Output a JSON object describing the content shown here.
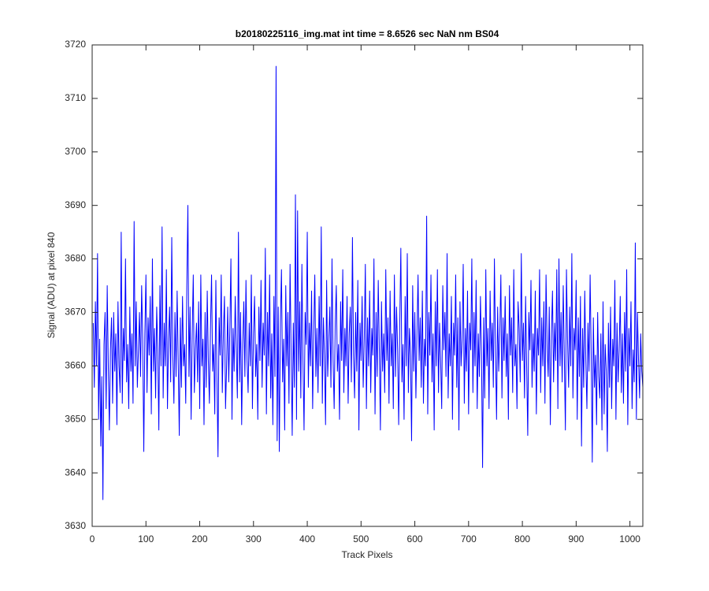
{
  "chart_data": {
    "type": "line",
    "title": "b20180225116_img.mat int time = 8.6526 sec  NaN nm BS04",
    "x_label": "Track Pixels",
    "y_label": "Signal (ADU) at pixel 840",
    "xlim": [
      0,
      1024
    ],
    "ylim": [
      3630,
      3720
    ],
    "xticks": [
      0,
      100,
      200,
      300,
      400,
      500,
      600,
      700,
      800,
      900,
      1000
    ],
    "yticks": [
      3630,
      3640,
      3650,
      3660,
      3670,
      3680,
      3690,
      3700,
      3710,
      3720
    ],
    "grid": false,
    "x": [
      2,
      4,
      6,
      8,
      10,
      12,
      14,
      16,
      18,
      20,
      22,
      24,
      26,
      28,
      30,
      32,
      34,
      36,
      38,
      40,
      42,
      44,
      46,
      48,
      50,
      52,
      54,
      56,
      58,
      60,
      62,
      64,
      66,
      68,
      70,
      72,
      74,
      76,
      78,
      80,
      82,
      84,
      86,
      88,
      90,
      92,
      94,
      96,
      98,
      100,
      102,
      104,
      106,
      108,
      110,
      112,
      114,
      116,
      118,
      120,
      122,
      124,
      126,
      128,
      130,
      132,
      134,
      136,
      138,
      140,
      142,
      144,
      146,
      148,
      150,
      152,
      154,
      156,
      158,
      160,
      162,
      164,
      166,
      168,
      170,
      172,
      174,
      176,
      178,
      180,
      182,
      184,
      186,
      188,
      190,
      192,
      194,
      196,
      198,
      200,
      202,
      204,
      206,
      208,
      210,
      212,
      214,
      216,
      218,
      220,
      222,
      224,
      226,
      228,
      230,
      232,
      234,
      236,
      238,
      240,
      242,
      244,
      246,
      248,
      250,
      252,
      254,
      256,
      258,
      260,
      262,
      264,
      266,
      268,
      270,
      272,
      274,
      276,
      278,
      280,
      282,
      284,
      286,
      288,
      290,
      292,
      294,
      296,
      298,
      300,
      302,
      304,
      306,
      308,
      310,
      312,
      314,
      316,
      318,
      320,
      322,
      324,
      326,
      328,
      330,
      332,
      334,
      336,
      338,
      340,
      342,
      344,
      346,
      348,
      350,
      352,
      354,
      356,
      358,
      360,
      362,
      364,
      366,
      368,
      370,
      372,
      374,
      376,
      378,
      380,
      382,
      384,
      386,
      388,
      390,
      392,
      394,
      396,
      398,
      400,
      402,
      404,
      406,
      408,
      410,
      412,
      414,
      416,
      418,
      420,
      422,
      424,
      426,
      428,
      430,
      432,
      434,
      436,
      438,
      440,
      442,
      444,
      446,
      448,
      450,
      452,
      454,
      456,
      458,
      460,
      462,
      464,
      466,
      468,
      470,
      472,
      474,
      476,
      478,
      480,
      482,
      484,
      486,
      488,
      490,
      492,
      494,
      496,
      498,
      500,
      502,
      504,
      506,
      508,
      510,
      512,
      514,
      516,
      518,
      520,
      522,
      524,
      526,
      528,
      530,
      532,
      534,
      536,
      538,
      540,
      542,
      544,
      546,
      548,
      550,
      552,
      554,
      556,
      558,
      560,
      562,
      564,
      566,
      568,
      570,
      572,
      574,
      576,
      578,
      580,
      582,
      584,
      586,
      588,
      590,
      592,
      594,
      596,
      598,
      600,
      602,
      604,
      606,
      608,
      610,
      612,
      614,
      616,
      618,
      620,
      622,
      624,
      626,
      628,
      630,
      632,
      634,
      636,
      638,
      640,
      642,
      644,
      646,
      648,
      650,
      652,
      654,
      656,
      658,
      660,
      662,
      664,
      666,
      668,
      670,
      672,
      674,
      676,
      678,
      680,
      682,
      684,
      686,
      688,
      690,
      692,
      694,
      696,
      698,
      700,
      702,
      704,
      706,
      708,
      710,
      712,
      714,
      716,
      718,
      720,
      722,
      724,
      726,
      728,
      730,
      732,
      734,
      736,
      738,
      740,
      742,
      744,
      746,
      748,
      750,
      752,
      754,
      756,
      758,
      760,
      762,
      764,
      766,
      768,
      770,
      772,
      774,
      776,
      778,
      780,
      782,
      784,
      786,
      788,
      790,
      792,
      794,
      796,
      798,
      800,
      802,
      804,
      806,
      808,
      810,
      812,
      814,
      816,
      818,
      820,
      822,
      824,
      826,
      828,
      830,
      832,
      834,
      836,
      838,
      840,
      842,
      844,
      846,
      848,
      850,
      852,
      854,
      856,
      858,
      860,
      862,
      864,
      866,
      868,
      870,
      872,
      874,
      876,
      878,
      880,
      882,
      884,
      886,
      888,
      890,
      892,
      894,
      896,
      898,
      900,
      902,
      904,
      906,
      908,
      910,
      912,
      914,
      916,
      918,
      920,
      922,
      924,
      926,
      928,
      930,
      932,
      934,
      936,
      938,
      940,
      942,
      944,
      946,
      948,
      950,
      952,
      954,
      956,
      958,
      960,
      962,
      964,
      966,
      968,
      970,
      972,
      974,
      976,
      978,
      980,
      982,
      984,
      986,
      988,
      990,
      992,
      994,
      996,
      998,
      1000,
      1002,
      1004,
      1006,
      1008,
      1010,
      1012,
      1014,
      1016,
      1018,
      1020,
      1022,
      1024
    ],
    "series": [
      {
        "color": "#0000ff",
        "values": [
          3668,
          3656,
          3672,
          3660,
          3681,
          3650,
          3665,
          3645,
          3658,
          3635,
          3664,
          3670,
          3652,
          3675,
          3660,
          3648,
          3663,
          3669,
          3653,
          3670,
          3659,
          3666,
          3649,
          3672,
          3660,
          3655,
          3685,
          3653,
          3667,
          3661,
          3680,
          3657,
          3664,
          3652,
          3671,
          3659,
          3666,
          3653,
          3687,
          3660,
          3672,
          3656,
          3663,
          3670,
          3658,
          3675,
          3665,
          3644,
          3666,
          3677,
          3655,
          3669,
          3662,
          3673,
          3651,
          3680,
          3659,
          3667,
          3654,
          3671,
          3663,
          3648,
          3675,
          3660,
          3686,
          3654,
          3668,
          3660,
          3678,
          3652,
          3665,
          3671,
          3657,
          3684,
          3662,
          3653,
          3670,
          3658,
          3674,
          3661,
          3647,
          3669,
          3656,
          3673,
          3660,
          3664,
          3653,
          3675,
          3690,
          3658,
          3671,
          3650,
          3666,
          3677,
          3655,
          3663,
          3668,
          3657,
          3672,
          3652,
          3677,
          3660,
          3665,
          3649,
          3670,
          3656,
          3674,
          3661,
          3653,
          3667,
          3677,
          3659,
          3664,
          3651,
          3676,
          3658,
          3643,
          3669,
          3662,
          3677,
          3655,
          3666,
          3673,
          3652,
          3660,
          3671,
          3657,
          3667,
          3680,
          3650,
          3667,
          3659,
          3673,
          3663,
          3654,
          3685,
          3657,
          3670,
          3649,
          3664,
          3672,
          3658,
          3676,
          3661,
          3655,
          3668,
          3660,
          3677,
          3652,
          3666,
          3673,
          3658,
          3664,
          3650,
          3671,
          3661,
          3676,
          3656,
          3668,
          3662,
          3682,
          3651,
          3670,
          3660,
          3677,
          3654,
          3666,
          3649,
          3673,
          3658,
          3716,
          3646,
          3671,
          3644,
          3668,
          3678,
          3657,
          3665,
          3648,
          3675,
          3660,
          3670,
          3653,
          3679,
          3662,
          3647,
          3668,
          3656,
          3692,
          3650,
          3689,
          3659,
          3672,
          3654,
          3679,
          3661,
          3648,
          3670,
          3664,
          3685,
          3656,
          3668,
          3660,
          3674,
          3652,
          3666,
          3677,
          3658,
          3667,
          3655,
          3673,
          3660,
          3686,
          3653,
          3669,
          3662,
          3649,
          3676,
          3658,
          3665,
          3671,
          3656,
          3680,
          3661,
          3652,
          3668,
          3675,
          3659,
          3664,
          3650,
          3672,
          3661,
          3678,
          3655,
          3667,
          3660,
          3673,
          3653,
          3666,
          3671,
          3657,
          3684,
          3662,
          3654,
          3670,
          3659,
          3676,
          3648,
          3668,
          3661,
          3673,
          3656,
          3665,
          3679,
          3652,
          3669,
          3660,
          3674,
          3655,
          3667,
          3662,
          3680,
          3651,
          3670,
          3658,
          3676,
          3663,
          3648,
          3672,
          3659,
          3666,
          3655,
          3678,
          3661,
          3669,
          3653,
          3674,
          3660,
          3666,
          3652,
          3677,
          3658,
          3671,
          3663,
          3649,
          3668,
          3682,
          3657,
          3664,
          3650,
          3673,
          3660,
          3681,
          3655,
          3667,
          3662,
          3646,
          3675,
          3659,
          3670,
          3654,
          3666,
          3677,
          3661,
          3669,
          3656,
          3674,
          3653,
          3665,
          3660,
          3688,
          3651,
          3670,
          3662,
          3677,
          3657,
          3666,
          3648,
          3672,
          3660,
          3678,
          3655,
          3668,
          3661,
          3652,
          3675,
          3663,
          3670,
          3658,
          3681,
          3654,
          3666,
          3660,
          3673,
          3650,
          3668,
          3662,
          3677,
          3656,
          3669,
          3648,
          3672,
          3660,
          3665,
          3679,
          3653,
          3667,
          3659,
          3674,
          3651,
          3668,
          3663,
          3680,
          3655,
          3670,
          3660,
          3676,
          3652,
          3666,
          3658,
          3673,
          3662,
          3641,
          3669,
          3654,
          3678,
          3660,
          3667,
          3652,
          3674,
          3661,
          3668,
          3656,
          3680,
          3663,
          3650,
          3671,
          3659,
          3666,
          3677,
          3654,
          3669,
          3661,
          3673,
          3658,
          3666,
          3650,
          3675,
          3662,
          3669,
          3655,
          3678,
          3660,
          3664,
          3652,
          3672,
          3667,
          3657,
          3681,
          3661,
          3668,
          3654,
          3673,
          3660,
          3647,
          3670,
          3663,
          3676,
          3656,
          3666,
          3659,
          3674,
          3651,
          3667,
          3662,
          3678,
          3655,
          3669,
          3660,
          3672,
          3653,
          3677,
          3664,
          3658,
          3671,
          3649,
          3666,
          3674,
          3657,
          3668,
          3661,
          3678,
          3652,
          3680,
          3660,
          3670,
          3657,
          3675,
          3662,
          3648,
          3678,
          3665,
          3656,
          3671,
          3660,
          3681,
          3654,
          3667,
          3663,
          3676,
          3650,
          3669,
          3658,
          3673,
          3645,
          3667,
          3656,
          3674,
          3661,
          3652,
          3668,
          3659,
          3677,
          3662,
          3642,
          3669,
          3656,
          3662,
          3649,
          3670,
          3658,
          3654,
          3666,
          3648,
          3672,
          3651,
          3664,
          3659,
          3644,
          3668,
          3656,
          3671,
          3652,
          3665,
          3660,
          3676,
          3650,
          3668,
          3657,
          3663,
          3673,
          3655,
          3666,
          3653,
          3670,
          3659,
          3678,
          3649,
          3667,
          3660,
          3672,
          3652,
          3663,
          3657,
          3683,
          3650,
          3670,
          3661,
          3654,
          3666,
          3659,
          3656
        ]
      }
    ]
  }
}
